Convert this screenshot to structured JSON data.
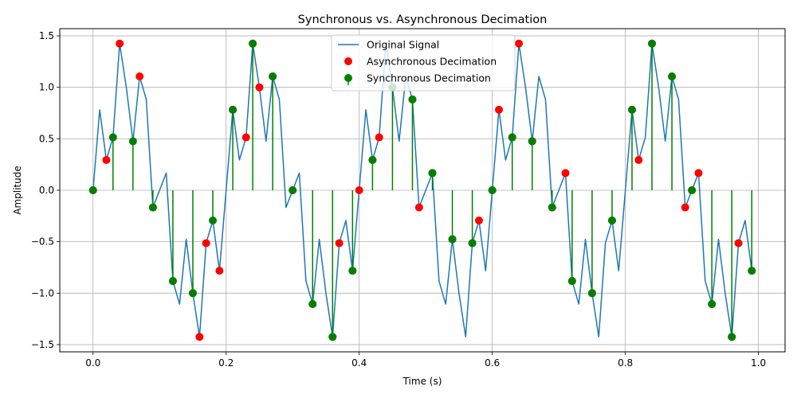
{
  "chart_data": {
    "type": "line",
    "title": "Synchronous vs. Asynchronous Decimation",
    "xlabel": "Time (s)",
    "ylabel": "Amplitude",
    "xlim": [
      -0.05,
      1.04
    ],
    "ylim": [
      -1.57,
      1.57
    ],
    "xticks": [
      0.0,
      0.2,
      0.4,
      0.6,
      0.8,
      1.0
    ],
    "xtick_labels": [
      "0.0",
      "0.2",
      "0.4",
      "0.6",
      "0.8",
      "1.0"
    ],
    "yticks": [
      -1.5,
      -1.0,
      -0.5,
      0.0,
      0.5,
      1.0,
      1.5
    ],
    "ytick_labels": [
      "−1.5",
      "−1.0",
      "−0.5",
      "0.0",
      "0.5",
      "1.0",
      "1.5"
    ],
    "grid": true,
    "legend_position": "top-center",
    "series": [
      {
        "name": "Original Signal",
        "kind": "line",
        "color": "#1f77b4",
        "x": [
          0.0,
          0.01,
          0.02,
          0.03,
          0.04,
          0.05,
          0.06,
          0.07,
          0.08,
          0.09,
          0.1,
          0.11,
          0.12,
          0.13,
          0.14,
          0.15,
          0.16,
          0.17,
          0.18,
          0.19,
          0.2,
          0.21,
          0.22,
          0.23,
          0.24,
          0.25,
          0.26,
          0.27,
          0.28,
          0.29,
          0.3,
          0.31,
          0.32,
          0.33,
          0.34,
          0.35,
          0.36,
          0.37,
          0.38,
          0.39,
          0.4,
          0.41,
          0.42,
          0.43,
          0.44,
          0.45,
          0.46,
          0.47,
          0.48,
          0.49,
          0.5,
          0.51,
          0.52,
          0.53,
          0.54,
          0.55,
          0.56,
          0.57,
          0.58,
          0.59,
          0.6,
          0.61,
          0.62,
          0.63,
          0.64,
          0.65,
          0.66,
          0.67,
          0.68,
          0.69,
          0.7,
          0.71,
          0.72,
          0.73,
          0.74,
          0.75,
          0.76,
          0.77,
          0.78,
          0.79,
          0.8,
          0.81,
          0.82,
          0.83,
          0.84,
          0.85,
          0.86,
          0.87,
          0.88,
          0.89,
          0.9,
          0.91,
          0.92,
          0.93,
          0.94,
          0.95,
          0.96,
          0.97,
          0.98,
          0.99
        ],
        "y": [
          0.0,
          0.782,
          0.294,
          0.514,
          1.425,
          1.0,
          0.476,
          1.106,
          0.882,
          -0.167,
          0.0,
          0.167,
          -0.882,
          -1.106,
          -0.476,
          -1.0,
          -1.425,
          -0.514,
          -0.294,
          -0.782,
          0.0,
          0.782,
          0.294,
          0.514,
          1.425,
          1.0,
          0.476,
          1.106,
          0.882,
          -0.167,
          0.0,
          0.167,
          -0.882,
          -1.106,
          -0.476,
          -1.0,
          -1.425,
          -0.514,
          -0.294,
          -0.782,
          0.0,
          0.782,
          0.294,
          0.514,
          1.425,
          1.0,
          0.476,
          1.106,
          0.882,
          -0.167,
          0.0,
          0.167,
          -0.882,
          -1.106,
          -0.476,
          -1.0,
          -1.425,
          -0.514,
          -0.294,
          -0.782,
          0.0,
          0.782,
          0.294,
          0.514,
          1.425,
          1.0,
          0.476,
          1.106,
          0.882,
          -0.167,
          0.0,
          0.167,
          -0.882,
          -1.106,
          -0.476,
          -1.0,
          -1.425,
          -0.514,
          -0.294,
          -0.782,
          0.0,
          0.782,
          0.294,
          0.514,
          1.425,
          1.0,
          0.476,
          1.106,
          0.882,
          -0.167,
          0.0,
          0.167,
          -0.882,
          -1.106,
          -0.476,
          -1.0,
          -1.425,
          -0.514,
          -0.294,
          -0.782
        ]
      },
      {
        "name": "Asynchronous Decimation",
        "kind": "scatter",
        "color": "#ff0000",
        "x": [
          0.0,
          0.02,
          0.04,
          0.07,
          0.09,
          0.12,
          0.15,
          0.16,
          0.17,
          0.19,
          0.21,
          0.23,
          0.24,
          0.25,
          0.27,
          0.3,
          0.33,
          0.36,
          0.37,
          0.39,
          0.4,
          0.42,
          0.43,
          0.45,
          0.48,
          0.49,
          0.51,
          0.54,
          0.57,
          0.58,
          0.6,
          0.61,
          0.63,
          0.64,
          0.66,
          0.69,
          0.71,
          0.72,
          0.75,
          0.78,
          0.81,
          0.82,
          0.84,
          0.87,
          0.89,
          0.9,
          0.91,
          0.93,
          0.96,
          0.97,
          0.99
        ],
        "y": [
          0.0,
          0.294,
          1.425,
          1.106,
          -0.167,
          -0.882,
          -1.0,
          -1.425,
          -0.514,
          -0.782,
          0.782,
          0.514,
          1.425,
          1.0,
          1.106,
          0.0,
          -1.106,
          -1.425,
          -0.514,
          -0.782,
          0.0,
          0.294,
          0.514,
          1.0,
          0.882,
          -0.167,
          0.167,
          -0.476,
          -0.514,
          -0.294,
          0.0,
          0.782,
          0.514,
          1.425,
          0.476,
          -0.167,
          0.167,
          -0.882,
          -1.0,
          -0.294,
          0.782,
          0.294,
          1.425,
          1.106,
          -0.167,
          0.0,
          0.167,
          -1.106,
          -1.425,
          -0.514,
          -0.782
        ]
      },
      {
        "name": "Synchronous Decimation",
        "kind": "stem",
        "color": "#008000",
        "x": [
          0.0,
          0.03,
          0.06,
          0.09,
          0.12,
          0.15,
          0.18,
          0.21,
          0.24,
          0.27,
          0.3,
          0.33,
          0.36,
          0.39,
          0.42,
          0.45,
          0.48,
          0.51,
          0.54,
          0.57,
          0.6,
          0.63,
          0.66,
          0.69,
          0.72,
          0.75,
          0.78,
          0.81,
          0.84,
          0.87,
          0.9,
          0.93,
          0.96,
          0.99
        ],
        "y": [
          0.0,
          0.514,
          0.476,
          -0.167,
          -0.882,
          -1.0,
          -0.294,
          0.782,
          1.425,
          1.106,
          0.0,
          -1.106,
          -1.425,
          -0.782,
          0.294,
          1.0,
          0.882,
          0.167,
          -0.476,
          -0.514,
          0.0,
          0.514,
          0.476,
          -0.167,
          -0.882,
          -1.0,
          -0.294,
          0.782,
          1.425,
          1.106,
          0.0,
          -1.106,
          -1.425,
          -0.782
        ]
      }
    ]
  }
}
